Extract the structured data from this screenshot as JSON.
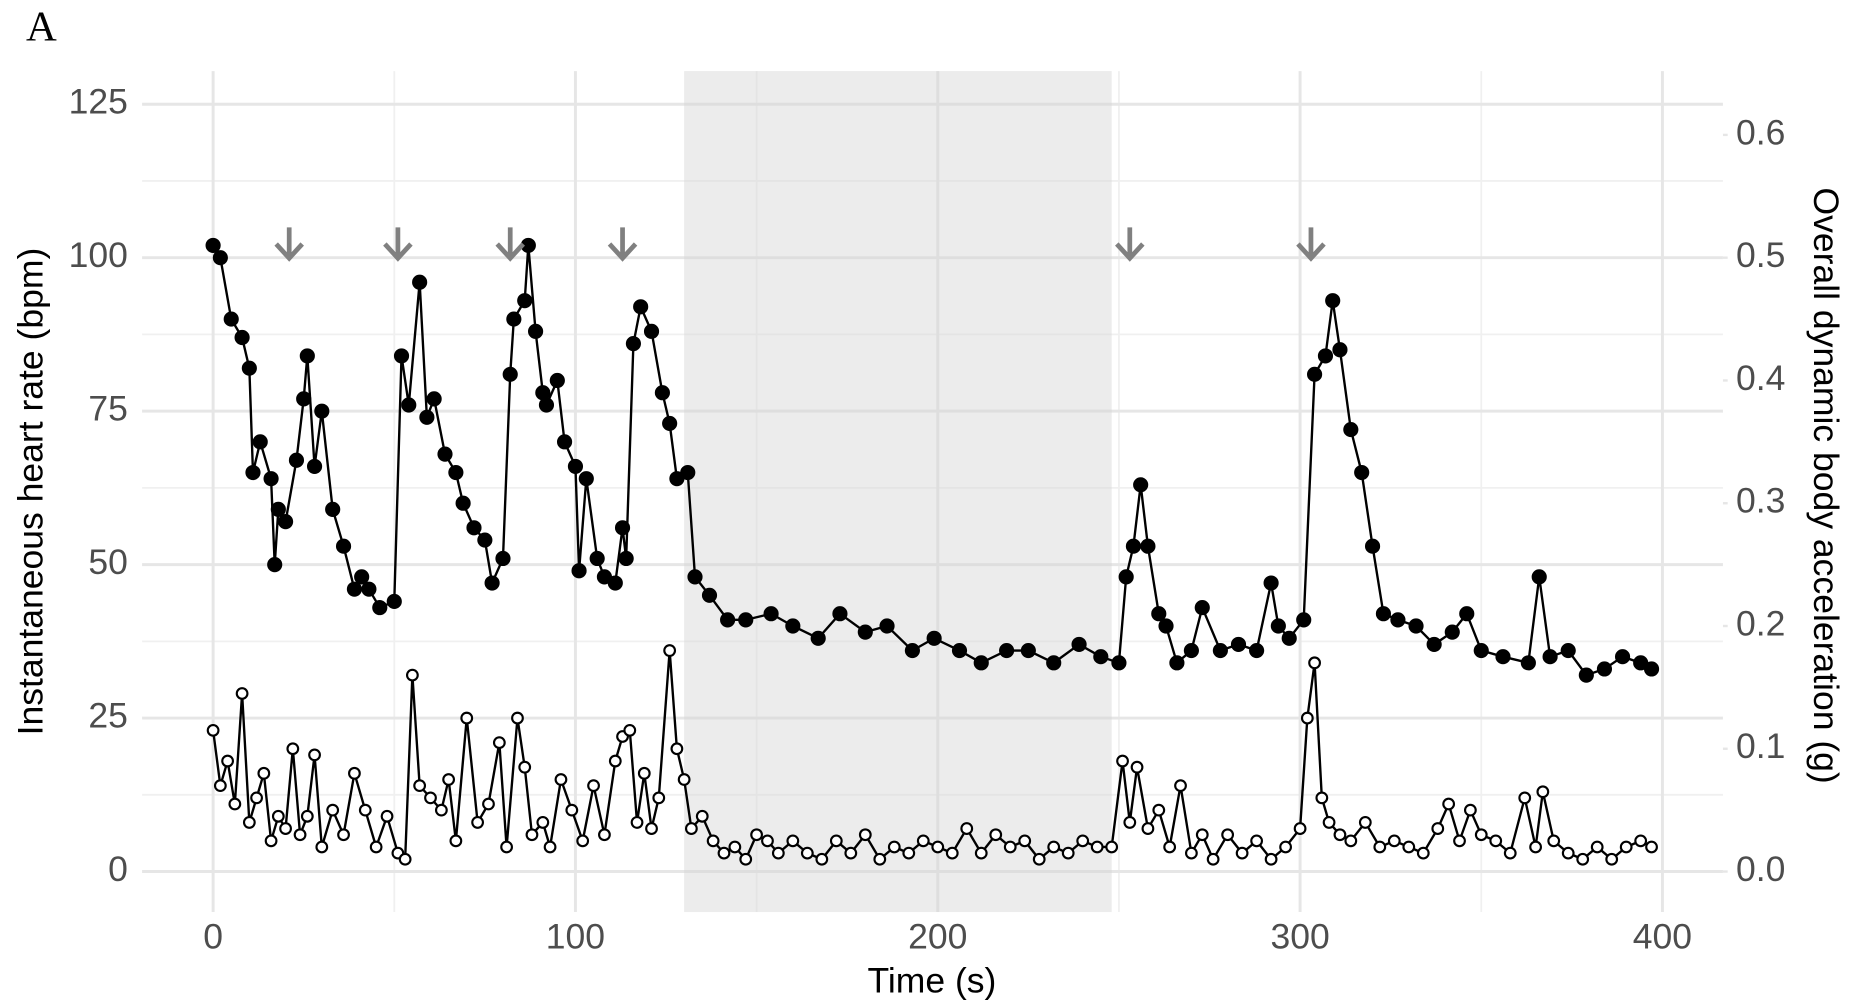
{
  "chart_data": {
    "type": "line",
    "title": "A",
    "x_label": "Time (s)",
    "y_label": "Instantaneous heart rate (bpm)",
    "y2_label": "Overall dynamic body acceleration (g)",
    "xlim": [
      -19.6,
      416.7
    ],
    "xticks": [
      0,
      100,
      200,
      300,
      400
    ],
    "x_minor_ticks": [
      50,
      150,
      250,
      350
    ],
    "ylim": [
      -6.6,
      130.4
    ],
    "yticks": [
      0,
      25,
      50,
      75,
      100,
      125
    ],
    "y_minor_ticks": [
      12.5,
      37.5,
      62.5,
      87.5,
      112.5
    ],
    "y2lim": [
      -0.033,
      0.652
    ],
    "y2ticks": [
      {
        "value": 0,
        "label": "0.0"
      },
      0.1,
      0.2,
      0.3,
      0.4,
      0.5,
      0.6
    ],
    "grid": true,
    "shade_x": [
      130,
      248
    ],
    "arrows_x": [
      21,
      51,
      82,
      113,
      253,
      303
    ],
    "arrow_color": "#808080",
    "series": [
      {
        "color": "#000000",
        "marker": "filled",
        "x": [
          0,
          2,
          5,
          8,
          10,
          11,
          13,
          16,
          17,
          18,
          20,
          23,
          25,
          26,
          28,
          30,
          33,
          36,
          39,
          41,
          43,
          46,
          50,
          52,
          54,
          57,
          59,
          61,
          64,
          67,
          69,
          72,
          75,
          77,
          80,
          82,
          83,
          86,
          87,
          89,
          91,
          92,
          95,
          97,
          100,
          101,
          103,
          106,
          108,
          111,
          113,
          114,
          116,
          118,
          121,
          124,
          126,
          128,
          131,
          133,
          137,
          142,
          147,
          154,
          160,
          167,
          173,
          180,
          186,
          193,
          199,
          206,
          212,
          219,
          225,
          232,
          239,
          245,
          250,
          252,
          254,
          256,
          258,
          261,
          263,
          266,
          270,
          273,
          278,
          283,
          288,
          292,
          294,
          297,
          301,
          304,
          307,
          309,
          311,
          314,
          317,
          320,
          323,
          327,
          332,
          337,
          342,
          346,
          350,
          356,
          363,
          366,
          369,
          374,
          379,
          384,
          389,
          394,
          397
        ],
        "values": [
          102,
          100,
          90,
          87,
          82,
          65,
          70,
          64,
          50,
          59,
          57,
          67,
          77,
          84,
          66,
          75,
          59,
          53,
          46,
          48,
          46,
          43,
          44,
          84,
          76,
          96,
          74,
          77,
          68,
          65,
          60,
          56,
          54,
          47,
          51,
          81,
          90,
          93,
          102,
          88,
          78,
          76,
          80,
          70,
          66,
          49,
          64,
          51,
          48,
          47,
          56,
          51,
          86,
          92,
          88,
          78,
          73,
          64,
          65,
          48,
          45,
          41,
          41,
          42,
          40,
          38,
          42,
          39,
          40,
          36,
          38,
          36,
          34,
          36,
          36,
          34,
          37,
          35,
          34,
          48,
          53,
          63,
          53,
          42,
          40,
          34,
          36,
          43,
          36,
          37,
          36,
          47,
          40,
          38,
          41,
          81,
          84,
          93,
          85,
          72,
          65,
          53,
          42,
          41,
          40,
          37,
          39,
          42,
          36,
          35,
          34,
          48,
          35,
          36,
          32,
          33,
          35,
          34,
          33
        ]
      },
      {
        "color": "#000000",
        "marker": "open",
        "axis": "y2",
        "x": [
          0,
          2,
          4,
          6,
          8,
          10,
          12,
          14,
          16,
          18,
          20,
          22,
          24,
          26,
          28,
          30,
          33,
          36,
          39,
          42,
          45,
          48,
          51,
          53,
          55,
          57,
          60,
          63,
          65,
          67,
          70,
          73,
          76,
          79,
          81,
          84,
          86,
          88,
          91,
          93,
          96,
          99,
          102,
          105,
          108,
          111,
          113,
          115,
          117,
          119,
          121,
          123,
          126,
          128,
          130,
          132,
          135,
          138,
          141,
          144,
          147,
          150,
          153,
          156,
          160,
          164,
          168,
          172,
          176,
          180,
          184,
          188,
          192,
          196,
          200,
          204,
          208,
          212,
          216,
          220,
          224,
          228,
          232,
          236,
          240,
          244,
          248,
          251,
          253,
          255,
          258,
          261,
          264,
          267,
          270,
          273,
          276,
          280,
          284,
          288,
          292,
          296,
          300,
          302,
          304,
          306,
          308,
          311,
          314,
          318,
          322,
          326,
          330,
          334,
          338,
          341,
          344,
          347,
          350,
          354,
          358,
          362,
          365,
          367,
          370,
          374,
          378,
          382,
          386,
          390,
          394,
          397
        ],
        "values": [
          0.115,
          0.07,
          0.09,
          0.055,
          0.145,
          0.04,
          0.06,
          0.08,
          0.025,
          0.045,
          0.035,
          0.1,
          0.03,
          0.045,
          0.095,
          0.02,
          0.05,
          0.03,
          0.08,
          0.05,
          0.02,
          0.045,
          0.015,
          0.01,
          0.16,
          0.07,
          0.06,
          0.05,
          0.075,
          0.025,
          0.125,
          0.04,
          0.055,
          0.105,
          0.02,
          0.125,
          0.085,
          0.03,
          0.04,
          0.02,
          0.075,
          0.05,
          0.025,
          0.07,
          0.03,
          0.09,
          0.11,
          0.115,
          0.04,
          0.08,
          0.035,
          0.06,
          0.18,
          0.1,
          0.075,
          0.035,
          0.045,
          0.025,
          0.015,
          0.02,
          0.01,
          0.03,
          0.025,
          0.015,
          0.025,
          0.015,
          0.01,
          0.025,
          0.015,
          0.03,
          0.01,
          0.02,
          0.015,
          0.025,
          0.02,
          0.015,
          0.035,
          0.015,
          0.03,
          0.02,
          0.025,
          0.01,
          0.02,
          0.015,
          0.025,
          0.02,
          0.02,
          0.09,
          0.04,
          0.085,
          0.035,
          0.05,
          0.02,
          0.07,
          0.015,
          0.03,
          0.01,
          0.03,
          0.015,
          0.025,
          0.01,
          0.02,
          0.035,
          0.125,
          0.17,
          0.06,
          0.04,
          0.03,
          0.025,
          0.04,
          0.02,
          0.025,
          0.02,
          0.015,
          0.035,
          0.055,
          0.025,
          0.05,
          0.03,
          0.025,
          0.015,
          0.06,
          0.02,
          0.065,
          0.025,
          0.015,
          0.01,
          0.02,
          0.01,
          0.02,
          0.025,
          0.02
        ]
      }
    ]
  }
}
